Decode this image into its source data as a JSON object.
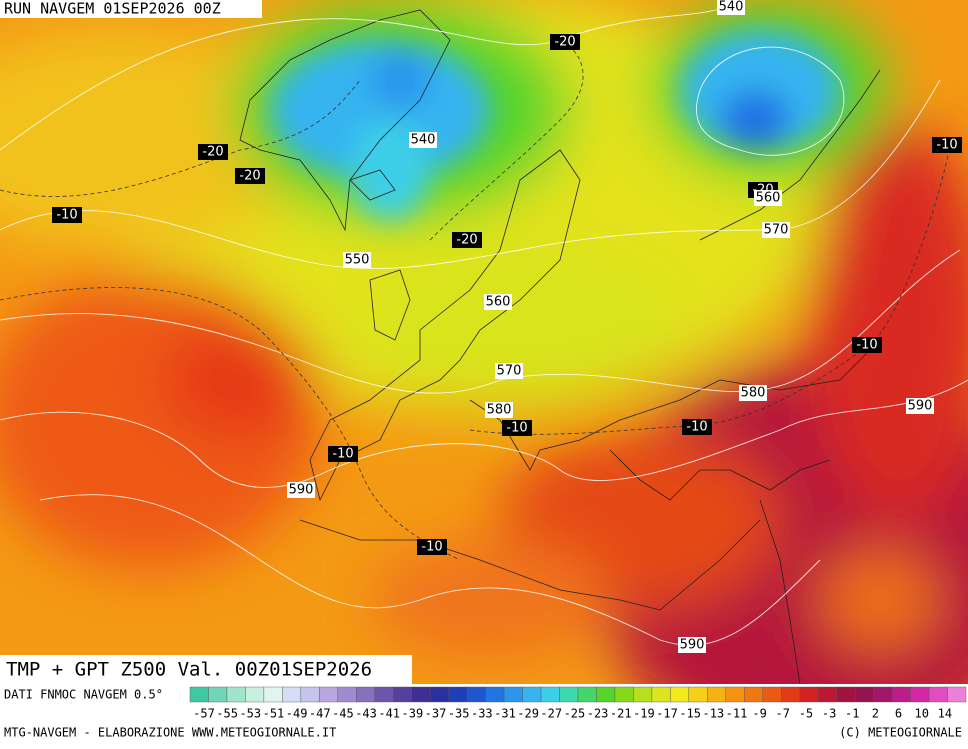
{
  "header": {
    "run": "RUN NAVGEM 01SEP2026 00Z"
  },
  "map": {
    "title": "TMP + GPT Z500 Val. 00Z01SEP2026",
    "temperature_labels": [
      -20,
      -20,
      -20,
      -10,
      -20,
      -10,
      -20,
      -10,
      -10,
      -10,
      -10,
      -10
    ],
    "height_labels": [
      540,
      540,
      550,
      560,
      570,
      560,
      570,
      580,
      580,
      590,
      590,
      590
    ]
  },
  "colorbar": {
    "source": "DATI FNMOC NAVGEM 0.5°",
    "labels": [
      -57,
      -55,
      -53,
      -51,
      -49,
      -47,
      -45,
      -43,
      -41,
      -39,
      -37,
      -35,
      -33,
      -31,
      -29,
      -27,
      -25,
      -23,
      -21,
      -19,
      -17,
      -15,
      -13,
      -11,
      -9,
      -7,
      -5,
      -3,
      -1,
      2,
      6,
      10,
      14
    ],
    "colors": [
      "#3fc9a0",
      "#6fd7b5",
      "#9fe4cb",
      "#c8efe0",
      "#e2f4f0",
      "#d5def4",
      "#c7c4ec",
      "#b7a8e0",
      "#a08bd0",
      "#8770c0",
      "#6d55ae",
      "#55409c",
      "#3f2f94",
      "#2c2f9e",
      "#1f3fb8",
      "#1f56d0",
      "#2175e3",
      "#2b96ec",
      "#36b4f0",
      "#3dcfe8",
      "#3fd9b0",
      "#43d76a",
      "#55d42a",
      "#88d81c",
      "#b6df1d",
      "#dbe51e",
      "#f3e81c",
      "#f7cf17",
      "#f5b214",
      "#f49412",
      "#f07812",
      "#eb5a14",
      "#e23b1a",
      "#d32222",
      "#bd1830",
      "#a4133f",
      "#931250",
      "#a2166b",
      "#be1c8a",
      "#d329a6",
      "#e24cc1",
      "#ec80d8"
    ]
  },
  "footer": {
    "left": "MTG-NAVGEM - ELABORAZIONE WWW.METEOGIORNALE.IT",
    "right": "(C) METEOGIORNALE"
  }
}
